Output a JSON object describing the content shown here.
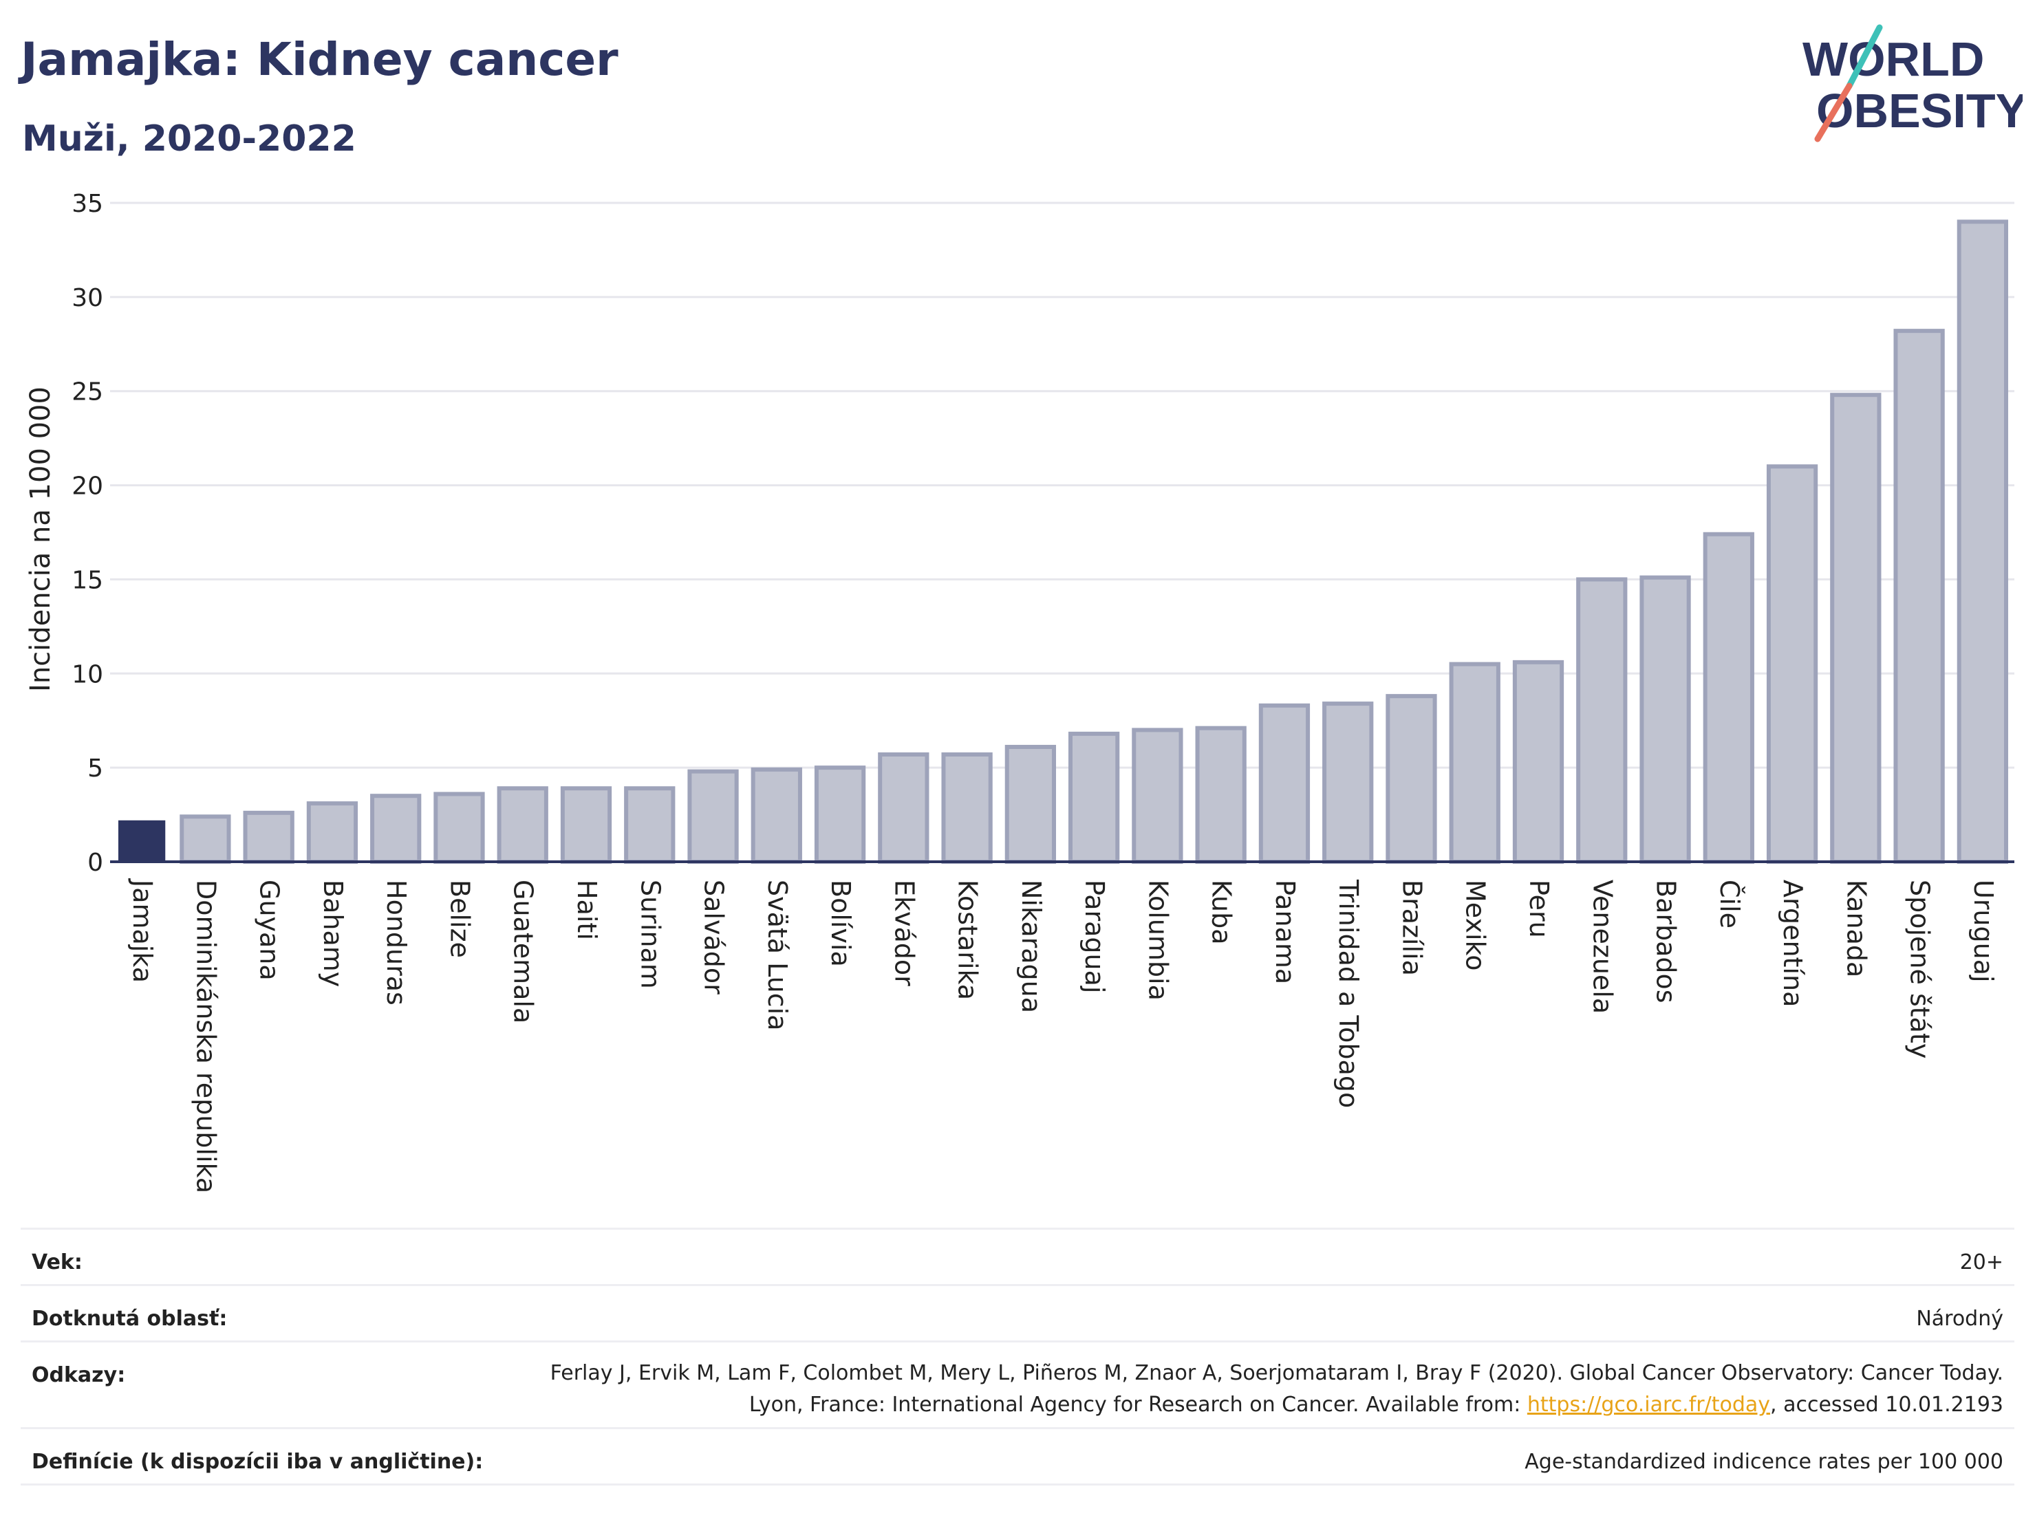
{
  "header": {
    "title": "Jamajka: Kidney cancer",
    "subtitle": "Muži, 2020-2022"
  },
  "logo": {
    "line1": "WORLD",
    "line2": "OBESITY",
    "colors": {
      "text": "#2d3561",
      "slash_teal": "#3ec1b8",
      "slash_red": "#e8705c"
    }
  },
  "chart_data": {
    "type": "bar",
    "ylabel": "Incidencia na 100 000",
    "xlabel": "",
    "ylim": [
      0,
      35
    ],
    "yticks": [
      0,
      5,
      10,
      15,
      20,
      25,
      30,
      35
    ],
    "grid": true,
    "highlight_category": "Jamajka",
    "colors": {
      "highlight": "#2d3561",
      "bar": "#c0c3d0",
      "bar_border": "#9ea3ba",
      "grid": "#e6e6ec"
    },
    "categories": [
      "Jamajka",
      "Dominikánska republika",
      "Guyana",
      "Bahamy",
      "Honduras",
      "Belize",
      "Guatemala",
      "Haiti",
      "Surinam",
      "Salvádor",
      "Svätá Lucia",
      "Bolívia",
      "Ekvádor",
      "Kostarika",
      "Nikaragua",
      "Paraguaj",
      "Kolumbia",
      "Kuba",
      "Panama",
      "Trinidad a Tobago",
      "Brazília",
      "Mexiko",
      "Peru",
      "Venezuela",
      "Barbados",
      "Čile",
      "Argentína",
      "Kanada",
      "Spojené štáty",
      "Uruguaj"
    ],
    "values": [
      2.2,
      2.4,
      2.6,
      3.1,
      3.5,
      3.6,
      3.9,
      3.9,
      3.9,
      4.8,
      4.9,
      5.0,
      5.7,
      5.7,
      6.1,
      6.8,
      7.0,
      7.1,
      8.3,
      8.4,
      8.8,
      10.5,
      10.6,
      15.0,
      15.1,
      17.4,
      21.0,
      24.8,
      28.2,
      34.0
    ]
  },
  "meta": {
    "age_label": "Vek:",
    "age_value": "20+",
    "area_label": "Dotknutá oblasť:",
    "area_value": "Národný",
    "refs_label": "Odkazy:",
    "refs_text": "Ferlay J, Ervik M, Lam F, Colombet M, Mery L, Piñeros M, Znaor A, Soerjomataram I, Bray F (2020). Global Cancer Observatory: Cancer Today. Lyon, France: International Agency for Research on Cancer. Available from: ",
    "refs_link": "https://gco.iarc.fr/today",
    "refs_tail": ", accessed 10.01.2193",
    "def_label": "Definície (k dispozícii iba v angličtine):",
    "def_value": "Age-standardized indicence rates per 100 000"
  }
}
